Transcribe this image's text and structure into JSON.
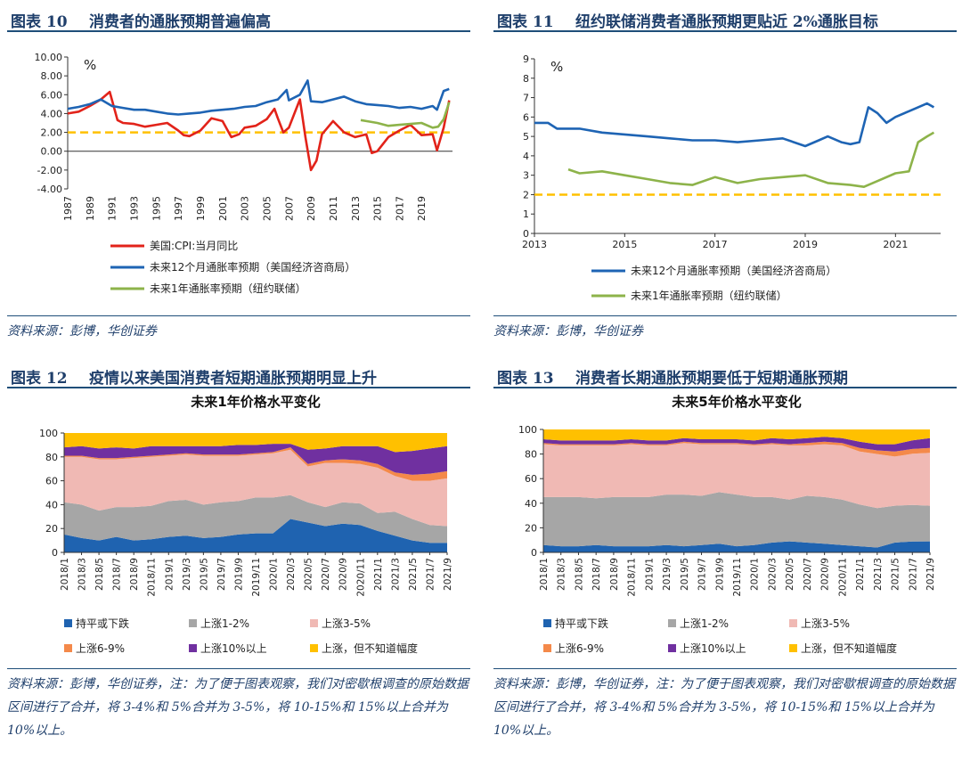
{
  "panels": [
    {
      "fig": "图表 10",
      "title": "消费者的通胀预期普遍偏高",
      "source": "资料来源：彭博，华创证券"
    },
    {
      "fig": "图表 11",
      "title": "纽约联储消费者通胀预期更贴近 2%通胀目标",
      "source": "资料来源：彭博，华创证券"
    },
    {
      "fig": "图表 12",
      "title": "疫情以来美国消费者短期通胀预期明显上升",
      "source": "资料来源：彭博，华创证券，注：为了便于图表观察，我们对密歇根调查的原始数据区间进行了合并，将 3-4%和 5%合并为 3-5%，将 10-15%和 15%以上合并为 10%以上。"
    },
    {
      "fig": "图表 13",
      "title": "消费者长期通胀预期要低于短期通胀预期",
      "source": "资料来源：彭博，华创证券，注：为了便于图表观察，我们对密歇根调查的原始数据区间进行了合并，将 3-4%和 5%合并为 3-5%，将 10-15%和 15%以上合并为 10%以上。"
    }
  ],
  "chart_data": [
    {
      "type": "line",
      "unit": "%",
      "ylim": [
        -4,
        10
      ],
      "yticks": [
        "10.00",
        "8.00",
        "6.00",
        "4.00",
        "2.00",
        "0.00",
        "-2.00",
        "-4.00"
      ],
      "xticks": [
        "1987",
        "1989",
        "1991",
        "1993",
        "1995",
        "1997",
        "1999",
        "2001",
        "2003",
        "2005",
        "2007",
        "2009",
        "2011",
        "2013",
        "2015",
        "2017",
        "2019"
      ],
      "reference_line": 2,
      "series": [
        {
          "name": "美国:CPI:当月同比",
          "color": "#e2231a",
          "x": [
            1987,
            1988,
            1989,
            1990,
            1990.8,
            1991.5,
            1992,
            1993,
            1994,
            1995,
            1996,
            1997,
            1997.5,
            1998,
            1999,
            2000,
            2001,
            2001.8,
            2002.5,
            2003,
            2004,
            2005,
            2005.7,
            2006,
            2006.5,
            2007,
            2007.5,
            2008,
            2008.5,
            2009,
            2009.5,
            2010,
            2011,
            2012,
            2013,
            2014,
            2014.5,
            2015,
            2016,
            2017,
            2018,
            2019,
            2020,
            2020.4,
            2021,
            2021.5
          ],
          "y": [
            4.0,
            4.2,
            4.8,
            5.5,
            6.3,
            3.3,
            3.0,
            2.9,
            2.6,
            2.8,
            3.0,
            2.2,
            1.7,
            1.6,
            2.2,
            3.5,
            3.2,
            1.5,
            1.8,
            2.5,
            2.7,
            3.4,
            4.5,
            3.5,
            2.0,
            2.5,
            4.0,
            5.5,
            1.5,
            -2.0,
            -1.0,
            1.8,
            3.2,
            2.0,
            1.5,
            1.8,
            -0.2,
            0.0,
            1.5,
            2.2,
            2.8,
            1.7,
            1.8,
            0.1,
            2.5,
            5.4
          ]
        },
        {
          "name": "未来12个月通胀率预期（美国经济咨商局）",
          "color": "#1e64b4",
          "x": [
            1987,
            1988,
            1989,
            1990,
            1991,
            1992,
            1993,
            1994,
            1995,
            1996,
            1997,
            1998,
            1999,
            2000,
            2001,
            2002,
            2003,
            2004,
            2005,
            2006,
            2006.8,
            2007,
            2008,
            2008.7,
            2009,
            2010,
            2011,
            2012,
            2013,
            2014,
            2015,
            2016,
            2017,
            2018,
            2019,
            2020,
            2020.4,
            2021,
            2021.5
          ],
          "y": [
            4.5,
            4.7,
            5.0,
            5.5,
            4.8,
            4.6,
            4.4,
            4.4,
            4.2,
            4.0,
            3.9,
            4.0,
            4.1,
            4.3,
            4.4,
            4.5,
            4.7,
            4.8,
            5.2,
            5.5,
            6.5,
            5.4,
            6.0,
            7.5,
            5.3,
            5.2,
            5.5,
            5.8,
            5.3,
            5.0,
            4.9,
            4.8,
            4.6,
            4.7,
            4.5,
            4.8,
            4.4,
            6.4,
            6.6
          ]
        },
        {
          "name": "未来1年通胀率预期（纽约联储）",
          "color": "#8db34a",
          "x": [
            2013.5,
            2014,
            2015,
            2016,
            2017,
            2018,
            2019,
            2020,
            2020.5,
            2021,
            2021.5
          ],
          "y": [
            3.3,
            3.2,
            3.0,
            2.7,
            2.8,
            2.9,
            3.0,
            2.5,
            2.6,
            3.4,
            5.2
          ]
        }
      ]
    },
    {
      "type": "line",
      "unit": "%",
      "ylim": [
        0,
        9
      ],
      "yticks": [
        "9",
        "8",
        "7",
        "6",
        "5",
        "4",
        "3",
        "2",
        "1",
        "0"
      ],
      "xticks": [
        "2013",
        "2015",
        "2017",
        "2019",
        "2021"
      ],
      "reference_line": 2,
      "series": [
        {
          "name": "未来12个月通胀率预期（美国经济咨商局）",
          "color": "#1e64b4",
          "x": [
            2013,
            2013.3,
            2013.5,
            2014,
            2014.5,
            2015,
            2015.5,
            2016,
            2016.5,
            2017,
            2017.5,
            2018,
            2018.5,
            2019,
            2019.3,
            2019.5,
            2019.8,
            2020,
            2020.2,
            2020.4,
            2020.6,
            2020.8,
            2021,
            2021.3,
            2021.5,
            2021.7,
            2021.85
          ],
          "y": [
            5.7,
            5.7,
            5.4,
            5.4,
            5.2,
            5.1,
            5.0,
            4.9,
            4.8,
            4.8,
            4.7,
            4.8,
            4.9,
            4.5,
            4.8,
            5.0,
            4.7,
            4.6,
            4.7,
            6.5,
            6.2,
            5.7,
            6.0,
            6.3,
            6.5,
            6.7,
            6.5
          ]
        },
        {
          "name": "未来1年通胀率预期（纽约联储）",
          "color": "#8db34a",
          "x": [
            2013.75,
            2014,
            2014.5,
            2015,
            2015.5,
            2016,
            2016.5,
            2017,
            2017.5,
            2018,
            2018.5,
            2019,
            2019.5,
            2020,
            2020.3,
            2020.6,
            2021,
            2021.3,
            2021.5,
            2021.7,
            2021.85
          ],
          "y": [
            3.3,
            3.1,
            3.2,
            3.0,
            2.8,
            2.6,
            2.5,
            2.9,
            2.6,
            2.8,
            2.9,
            3.0,
            2.6,
            2.5,
            2.4,
            2.7,
            3.1,
            3.2,
            4.7,
            5.0,
            5.2
          ]
        }
      ]
    },
    {
      "type": "area",
      "title": "未来1年价格水平变化",
      "ylim": [
        0,
        100
      ],
      "yticks": [
        "100",
        "80",
        "60",
        "40",
        "20",
        "0"
      ],
      "categories": [
        "2018/1",
        "2018/3",
        "2018/5",
        "2018/7",
        "2018/9",
        "2018/11",
        "2019/1",
        "2019/3",
        "2019/5",
        "2019/7",
        "2019/9",
        "2019/11",
        "2020/1",
        "2020/3",
        "2020/5",
        "2020/7",
        "2020/9",
        "2020/11",
        "2021/1",
        "2021/3",
        "2021/5",
        "2021/7",
        "2021/9"
      ],
      "series": [
        {
          "name": "持平或下跌",
          "color": "#1f63b0",
          "values": [
            15,
            12,
            10,
            13,
            10,
            11,
            13,
            14,
            12,
            13,
            15,
            16,
            16,
            28,
            25,
            22,
            24,
            23,
            18,
            14,
            10,
            8,
            8
          ]
        },
        {
          "name": "上涨1-2%",
          "color": "#a6a6a6",
          "values": [
            27,
            28,
            25,
            25,
            28,
            28,
            30,
            30,
            28,
            29,
            28,
            30,
            30,
            20,
            17,
            16,
            18,
            18,
            15,
            20,
            18,
            15,
            14
          ]
        },
        {
          "name": "上涨3-5%",
          "color": "#f0b9b4",
          "values": [
            38,
            40,
            43,
            40,
            41,
            41,
            38,
            38,
            41,
            39,
            38,
            36,
            37,
            38,
            30,
            37,
            33,
            33,
            38,
            30,
            32,
            37,
            40
          ]
        },
        {
          "name": "上涨6-9%",
          "color": "#f4894a",
          "values": [
            1,
            1,
            1,
            1,
            1,
            1,
            1,
            1,
            1,
            1,
            1,
            1,
            1,
            2,
            2,
            2,
            3,
            3,
            3,
            3,
            5,
            6,
            6
          ]
        },
        {
          "name": "上涨10%以上",
          "color": "#7030a0",
          "values": [
            7,
            8,
            8,
            9,
            7,
            8,
            7,
            6,
            7,
            7,
            8,
            7,
            7,
            3,
            12,
            10,
            11,
            12,
            15,
            17,
            20,
            21,
            21
          ]
        },
        {
          "name": "上涨，但不知道幅度",
          "color": "#ffc000",
          "values": [
            12,
            11,
            13,
            12,
            13,
            11,
            11,
            11,
            11,
            11,
            10,
            10,
            9,
            9,
            14,
            13,
            11,
            11,
            11,
            16,
            15,
            13,
            11
          ]
        }
      ]
    },
    {
      "type": "area",
      "title": "未来5年价格水平变化",
      "ylim": [
        0,
        100
      ],
      "yticks": [
        "100",
        "80",
        "60",
        "40",
        "20",
        "0"
      ],
      "categories": [
        "2018/1",
        "2018/3",
        "2018/5",
        "2018/7",
        "2018/9",
        "2018/11",
        "2019/1",
        "2019/3",
        "2019/5",
        "2019/7",
        "2019/9",
        "2019/11",
        "2020/1",
        "2020/3",
        "2020/5",
        "2020/7",
        "2020/9",
        "2020/11",
        "2021/1",
        "2021/3",
        "2021/5",
        "2021/7",
        "2021/9"
      ],
      "series": [
        {
          "name": "持平或下跌",
          "color": "#1f63b0",
          "values": [
            6,
            5,
            5,
            6,
            5,
            5,
            5,
            6,
            5,
            6,
            7,
            5,
            6,
            8,
            9,
            8,
            7,
            6,
            5,
            4,
            8,
            9,
            9
          ]
        },
        {
          "name": "上涨1-2%",
          "color": "#a6a6a6",
          "values": [
            39,
            40,
            40,
            38,
            40,
            40,
            40,
            41,
            42,
            40,
            42,
            42,
            39,
            37,
            34,
            38,
            38,
            37,
            34,
            32,
            30,
            30,
            29
          ]
        },
        {
          "name": "上涨3-5%",
          "color": "#f0b9b4",
          "values": [
            43,
            42,
            42,
            43,
            42,
            43,
            42,
            40,
            42,
            42,
            39,
            41,
            42,
            43,
            44,
            41,
            43,
            44,
            43,
            44,
            40,
            42,
            43
          ]
        },
        {
          "name": "上涨6-9%",
          "color": "#f4894a",
          "values": [
            1,
            1,
            1,
            1,
            1,
            1,
            1,
            1,
            1,
            1,
            1,
            1,
            1,
            1,
            1,
            2,
            2,
            2,
            3,
            3,
            4,
            4,
            4
          ]
        },
        {
          "name": "上涨10%以上",
          "color": "#7030a0",
          "values": [
            3,
            3,
            3,
            3,
            3,
            3,
            3,
            3,
            3,
            3,
            3,
            3,
            3,
            4,
            4,
            4,
            4,
            4,
            5,
            5,
            6,
            7,
            8
          ]
        },
        {
          "name": "上涨，但不知道幅度",
          "color": "#ffc000",
          "values": [
            8,
            9,
            9,
            9,
            9,
            8,
            9,
            9,
            7,
            8,
            8,
            8,
            9,
            7,
            8,
            7,
            6,
            7,
            10,
            12,
            12,
            9,
            7
          ]
        }
      ]
    }
  ]
}
